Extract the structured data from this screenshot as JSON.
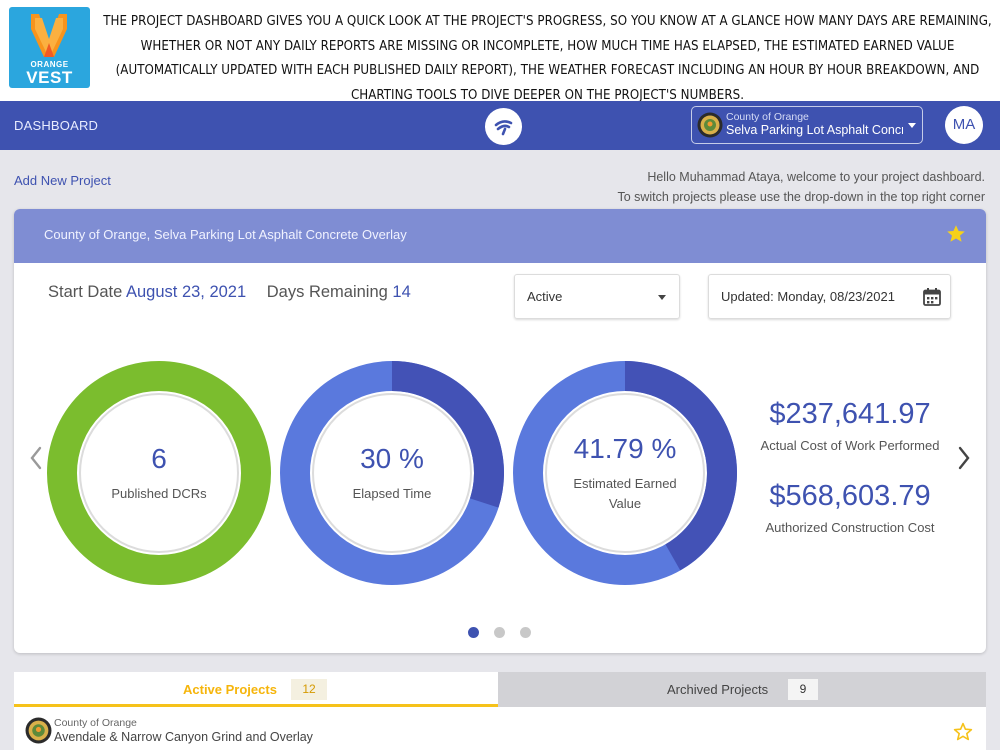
{
  "brand": {
    "line1": "ORANGE",
    "line2": "VEST"
  },
  "banner_text": "THE PROJECT DASHBOARD GIVES YOU A QUICK LOOK AT THE PROJECT'S PROGRESS, SO YOU KNOW AT A GLANCE HOW MANY DAYS ARE REMAINING, WHETHER OR NOT ANY DAILY REPORTS ARE MISSING OR INCOMPLETE, HOW MUCH TIME HAS ELAPSED, THE ESTIMATED EARNED VALUE (AUTOMATICALLY UPDATED WITH EACH PUBLISHED DAILY REPORT), THE WEATHER FORECAST INCLUDING AN HOUR BY HOUR BREAKDOWN, AND CHARTING TOOLS TO DIVE DEEPER ON THE PROJECT'S NUMBERS.",
  "nav": {
    "title": "DASHBOARD",
    "project_select": {
      "county": "County of Orange",
      "name": "Selva Parking Lot Asphalt Concrete Overlay"
    },
    "avatar": "MA"
  },
  "header": {
    "add_project": "Add New Project",
    "welcome_line1": "Hello Muhammad Ataya, welcome to your project dashboard.",
    "welcome_line2": "To switch projects please use the drop-down in the top right corner"
  },
  "project": {
    "title": "County of Orange, Selva Parking Lot Asphalt Concrete Overlay",
    "favorite": true,
    "start_label": "Start Date",
    "start_date": "August 23, 2021",
    "days_label": "Days Remaining",
    "days_remaining": "14",
    "status": "Active",
    "updated": "Updated: Monday, 08/23/2021"
  },
  "gauges": [
    {
      "value": "6",
      "label": "Published DCRs",
      "fraction": 1.0,
      "color": "#7bbd2e",
      "track": "#7bbd2e"
    },
    {
      "value": "30 %",
      "label": "Elapsed Time",
      "fraction": 0.3,
      "color": "#4352b6",
      "track": "#5a79dd"
    },
    {
      "value": "41.79 %",
      "label": "Estimated Earned Value",
      "fraction": 0.4179,
      "color": "#4352b6",
      "track": "#5a79dd"
    }
  ],
  "costs": [
    {
      "value": "$237,641.97",
      "label": "Actual Cost of Work Performed"
    },
    {
      "value": "$568,603.79",
      "label": "Authorized Construction Cost"
    }
  ],
  "carousel": {
    "pages": 3,
    "current": 1
  },
  "tabs": {
    "active": {
      "label": "Active Projects",
      "count": "12"
    },
    "archived": {
      "label": "Archived Projects",
      "count": "9"
    }
  },
  "list": [
    {
      "county": "County of Orange",
      "name": "Avendale & Narrow Canyon Grind and Overlay",
      "favorite": false
    }
  ],
  "colors": {
    "accent": "#3e52b0",
    "header": "#7f8dd3",
    "star": "#f6d11a",
    "tab_accent": "#f6c21a"
  }
}
